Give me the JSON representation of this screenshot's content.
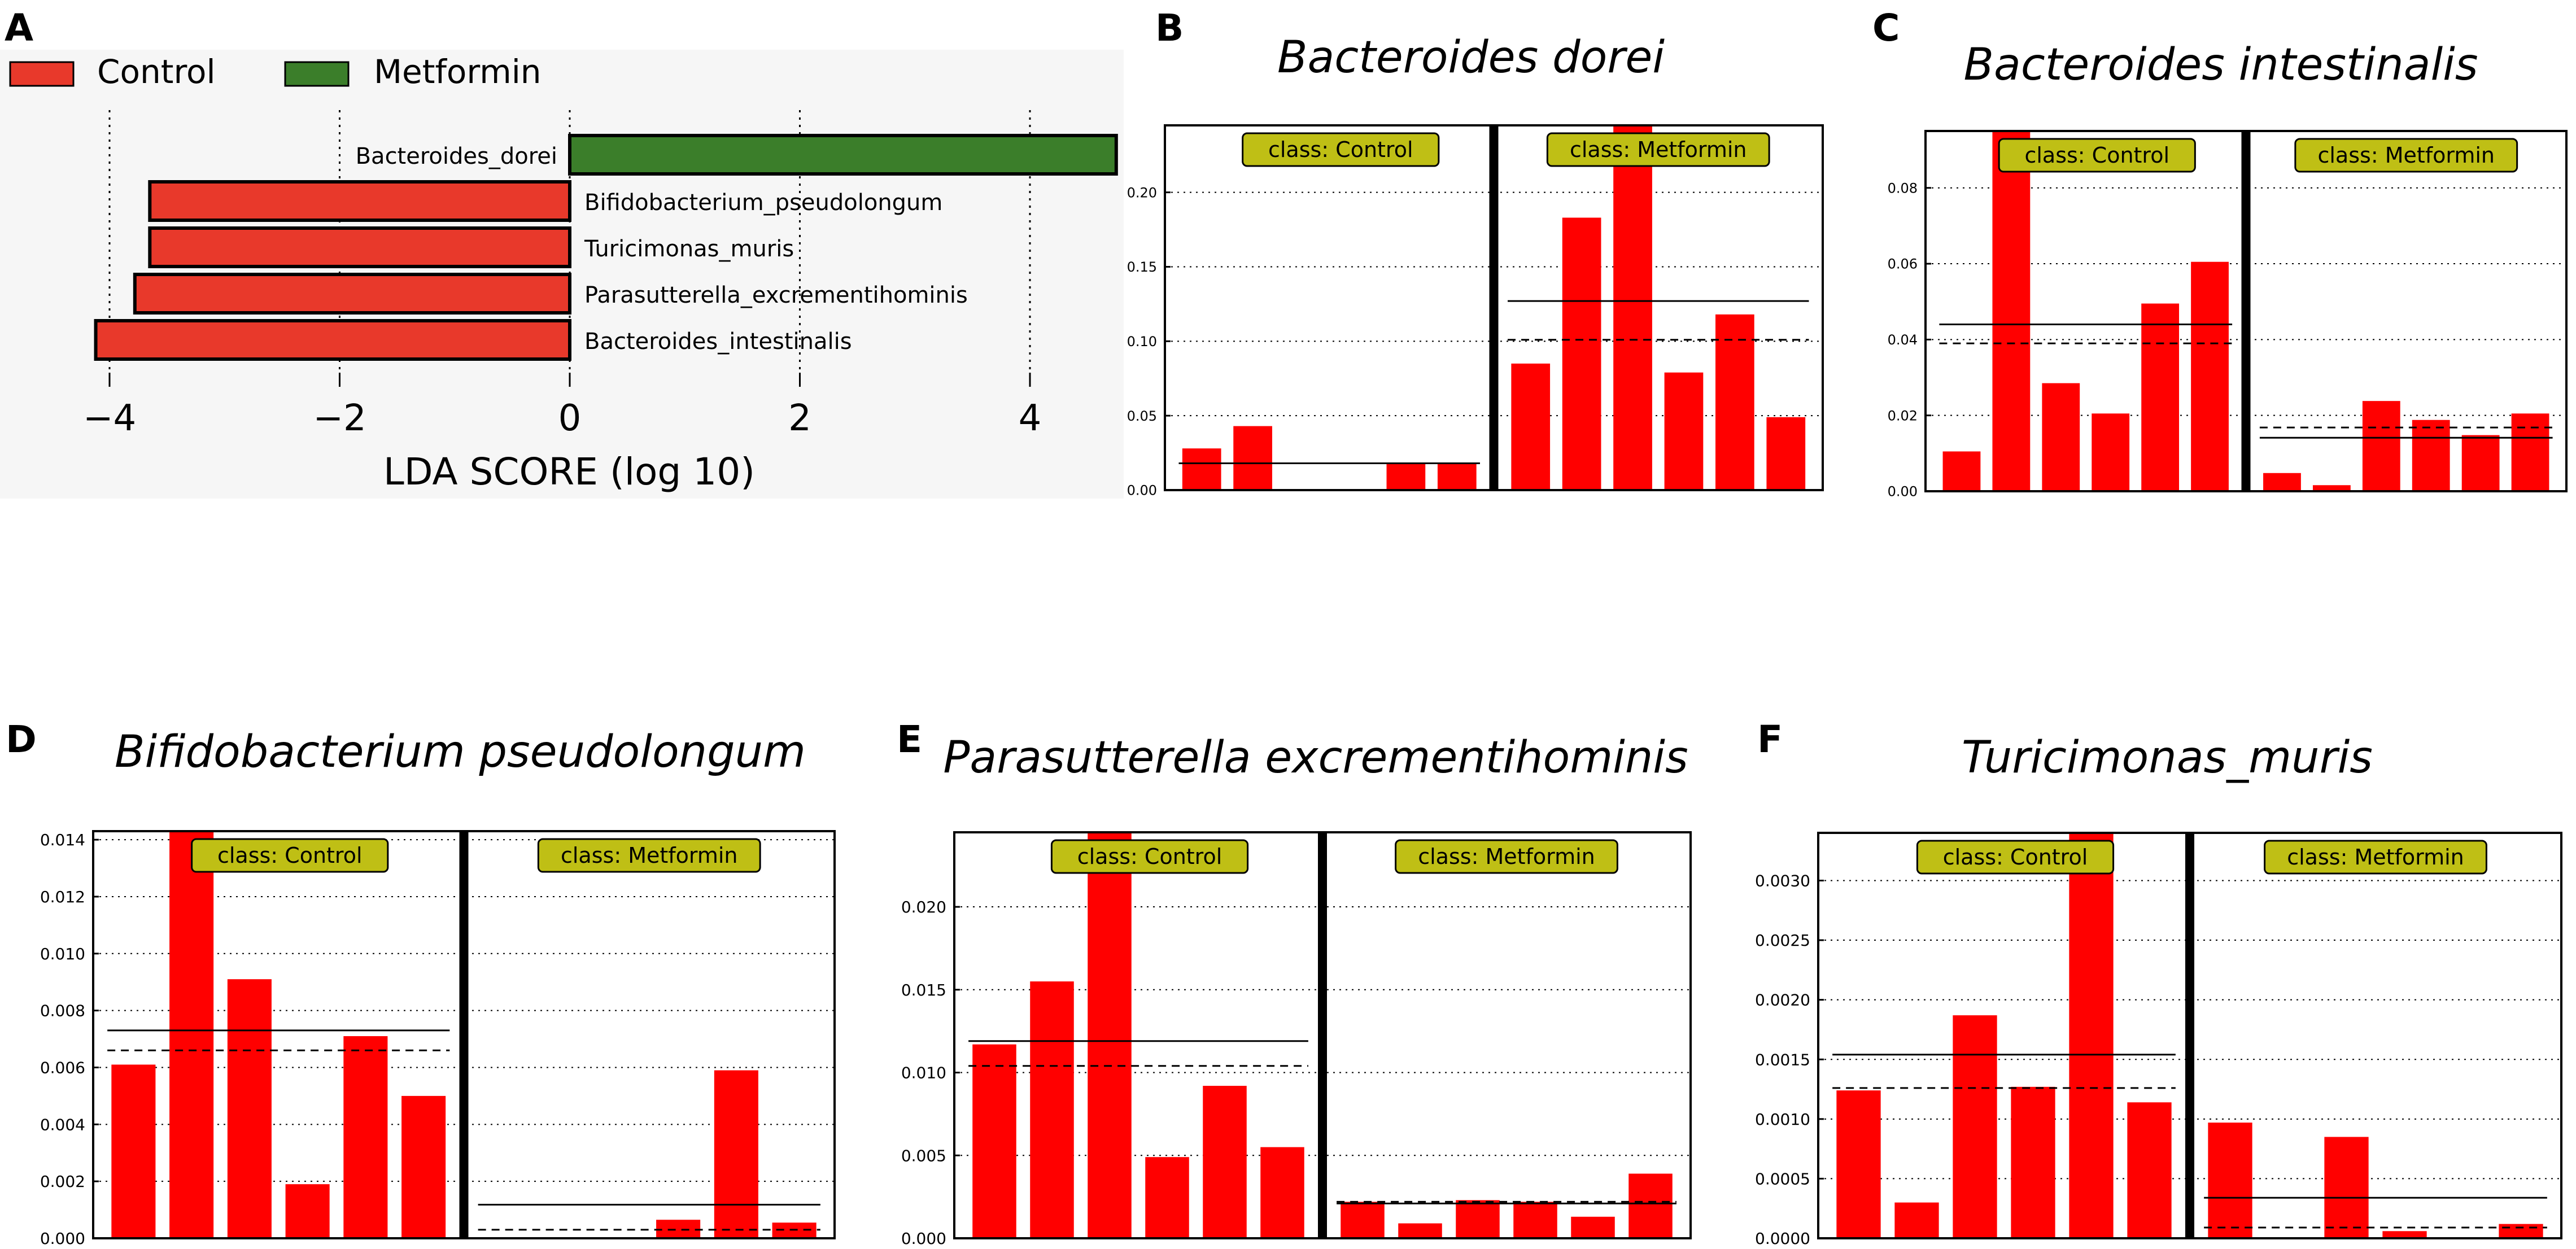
{
  "colors": {
    "control": "#E8392B",
    "metformin": "#3B7E2A",
    "bar": "#FF0000",
    "class_label_bg": "#BFBF15",
    "ink": "#000000"
  },
  "panel_a": {
    "letter": "A",
    "legend": [
      {
        "label": "Control",
        "color": "#E8392B"
      },
      {
        "label": "Metformin",
        "color": "#3B7E2A"
      }
    ],
    "chart_data": {
      "type": "bar",
      "orientation": "horizontal",
      "title": "",
      "xlabel": "LDA SCORE (log 10)",
      "xlim": [
        -4.2,
        4.8
      ],
      "xticks": [
        -4,
        -2,
        0,
        2,
        4
      ],
      "xtick_labels": [
        "−4",
        "−2",
        "0",
        "2",
        "4"
      ],
      "categories": [
        "Bacteroides_dorei",
        "Bifidobacterium_pseudolongum",
        "Turicimonas_muris",
        "Parasutterella_excrementihominis",
        "Bacteroides_intestinalis"
      ],
      "values": [
        4.75,
        -3.65,
        -3.65,
        -3.78,
        -4.12
      ],
      "groups": [
        "Metformin",
        "Control",
        "Control",
        "Control",
        "Control"
      ]
    }
  },
  "class_labels": {
    "control": "class: Control",
    "metformin": "class: Metformin"
  },
  "chart_data": [
    {
      "letter": "B",
      "type": "bar",
      "title": "Bacteroides dorei",
      "ylim": [
        0,
        0.245
      ],
      "yticks": [
        0.0,
        0.05,
        0.1,
        0.15,
        0.2
      ],
      "ytick_labels": [
        "0.00",
        "0.05",
        "0.10",
        "0.15",
        "0.20"
      ],
      "series": [
        {
          "name": "Control",
          "values": [
            0.028,
            0.043,
            0.0,
            0.0,
            0.018,
            0.018
          ],
          "mean": 0.018,
          "median": 0.018
        },
        {
          "name": "Metformin",
          "values": [
            0.085,
            0.183,
            0.245,
            0.079,
            0.118,
            0.049
          ],
          "mean": 0.127,
          "median": 0.101
        }
      ]
    },
    {
      "letter": "C",
      "type": "bar",
      "title": "Bacteroides intestinalis",
      "ylim": [
        0,
        0.095
      ],
      "yticks": [
        0.0,
        0.02,
        0.04,
        0.06,
        0.08
      ],
      "ytick_labels": [
        "0.00",
        "0.02",
        "0.04",
        "0.06",
        "0.08"
      ],
      "series": [
        {
          "name": "Control",
          "values": [
            0.0105,
            0.095,
            0.0285,
            0.0205,
            0.0495,
            0.0605
          ],
          "mean": 0.044,
          "median": 0.039
        },
        {
          "name": "Metformin",
          "values": [
            0.0048,
            0.0016,
            0.0238,
            0.0188,
            0.0148,
            0.0205
          ],
          "mean": 0.0141,
          "median": 0.0168
        }
      ]
    },
    {
      "letter": "D",
      "type": "bar",
      "title": "Bifidobacterium pseudolongum",
      "ylim": [
        0,
        0.0143
      ],
      "yticks": [
        0.0,
        0.002,
        0.004,
        0.006,
        0.008,
        0.01,
        0.012,
        0.014
      ],
      "ytick_labels": [
        "0.000",
        "0.002",
        "0.004",
        "0.006",
        "0.008",
        "0.010",
        "0.012",
        "0.014"
      ],
      "series": [
        {
          "name": "Control",
          "values": [
            0.0061,
            0.0143,
            0.0091,
            0.0019,
            0.0071,
            0.005
          ],
          "mean": 0.0073,
          "median": 0.0066
        },
        {
          "name": "Metformin",
          "values": [
            0.0,
            0.0,
            0.0,
            0.00065,
            0.0059,
            0.00055
          ],
          "mean": 0.00118,
          "median": 0.0003
        }
      ]
    },
    {
      "letter": "E",
      "type": "bar",
      "title": "Parasutterella excrementihominis",
      "ylim": [
        0,
        0.0245
      ],
      "yticks": [
        0.0,
        0.005,
        0.01,
        0.015,
        0.02
      ],
      "ytick_labels": [
        "0.000",
        "0.005",
        "0.010",
        "0.015",
        "0.020"
      ],
      "series": [
        {
          "name": "Control",
          "values": [
            0.0117,
            0.0155,
            0.0245,
            0.0049,
            0.0092,
            0.0055
          ],
          "mean": 0.0119,
          "median": 0.0104
        },
        {
          "name": "Metformin",
          "values": [
            0.0022,
            0.0009,
            0.0023,
            0.0022,
            0.0013,
            0.0039
          ],
          "mean": 0.0021,
          "median": 0.0022
        }
      ]
    },
    {
      "letter": "F",
      "type": "bar",
      "title": "Turicimonas_muris",
      "ylim": [
        0,
        0.0034
      ],
      "yticks": [
        0.0,
        0.0005,
        0.001,
        0.0015,
        0.002,
        0.0025,
        0.003
      ],
      "ytick_labels": [
        "0.0000",
        "0.0005",
        "0.0010",
        "0.0015",
        "0.0020",
        "0.0025",
        "0.0030"
      ],
      "series": [
        {
          "name": "Control",
          "values": [
            0.00124,
            0.0003,
            0.00187,
            0.00127,
            0.0034,
            0.00114
          ],
          "mean": 0.00154,
          "median": 0.00126
        },
        {
          "name": "Metformin",
          "values": [
            0.00097,
            0.0,
            0.00085,
            6e-05,
            0.0,
            0.00012
          ],
          "mean": 0.00034,
          "median": 9e-05
        }
      ]
    }
  ]
}
